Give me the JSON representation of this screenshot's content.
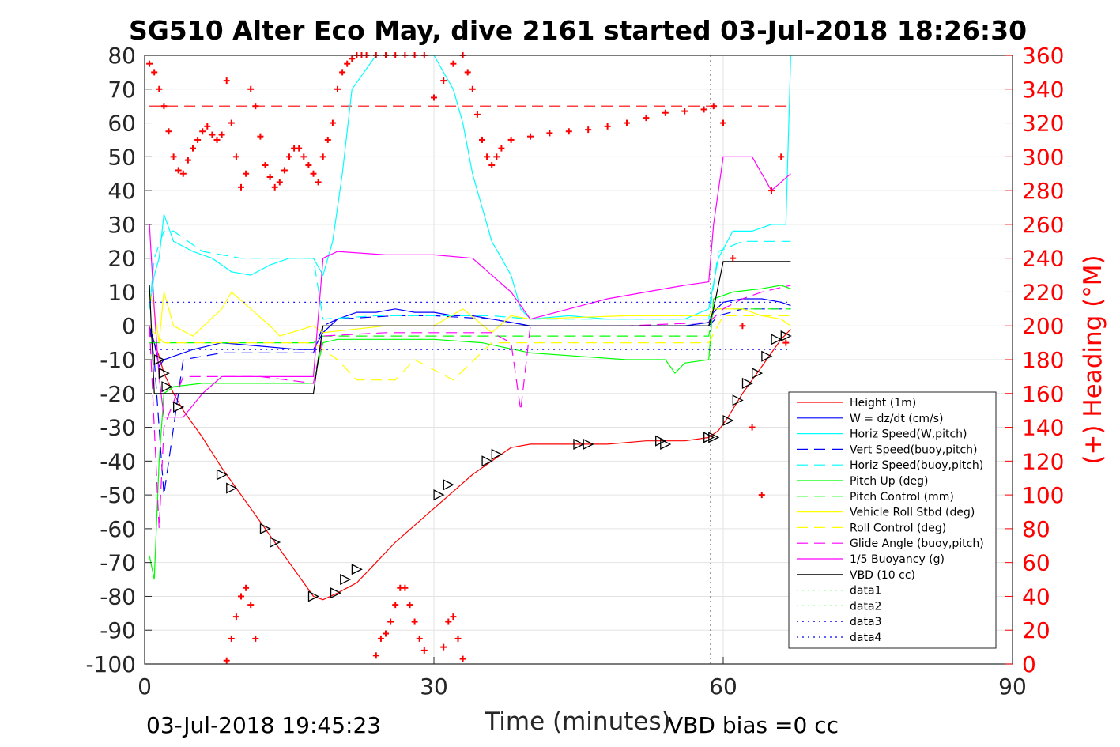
{
  "chart_data": {
    "type": "line",
    "title": "SG510 Alter Eco May, dive 2161 started 03-Jul-2018 18:26:30",
    "xlabel": "Time (minutes)",
    "ylabel_right": "(+) Heading (°M)",
    "xlim": [
      0,
      90
    ],
    "ylim": [
      -100,
      80
    ],
    "ylim_right": [
      0,
      360
    ],
    "x_ticks": [
      "0",
      "30",
      "60",
      "90"
    ],
    "y_ticks": [
      "-100",
      "-90",
      "-80",
      "-70",
      "-60",
      "-50",
      "-40",
      "-30",
      "-20",
      "-10",
      "0",
      "10",
      "20",
      "30",
      "40",
      "50",
      "60",
      "70",
      "80"
    ],
    "y_right_ticks": [
      "0",
      "20",
      "40",
      "60",
      "80",
      "100",
      "120",
      "140",
      "160",
      "180",
      "200",
      "220",
      "240",
      "260",
      "280",
      "300",
      "320",
      "340",
      "360"
    ],
    "grid": true,
    "legend_position": "lower-right",
    "footer_left": "03-Jul-2018 19:45:23",
    "footer_right": "VBD bias =0 cc",
    "colors": {
      "height": "#ff0000",
      "w": "#0000ff",
      "horiz_w": "#00ffff",
      "vert_buoy": "#0000ff",
      "horiz_buoy": "#00ffff",
      "pitch_up": "#00ff00",
      "pitch_control": "#00ff00",
      "roll": "#ffff00",
      "roll_control": "#ffff00",
      "glide_angle": "#ff00ff",
      "buoyancy": "#ff00ff",
      "vbd": "#000000",
      "heading": "#ff0000"
    },
    "vertical_markers_x": [
      58.7
    ],
    "heading_desired_deg": 330,
    "reference_lines_y": [
      7,
      -7
    ],
    "series": [
      {
        "name": "Height (1m)",
        "style": "solid",
        "color": "#ff0000",
        "x": [
          0.5,
          1,
          1.5,
          2,
          3,
          4,
          6,
          8,
          10,
          12,
          14,
          16,
          17.5,
          18.5,
          20,
          22,
          24,
          26,
          28,
          30,
          32,
          34,
          36,
          38,
          40,
          44,
          48,
          52,
          56,
          58.5,
          59.5,
          60.5,
          62,
          63,
          64,
          65,
          66,
          67
        ],
        "y": [
          -2,
          -5,
          -9,
          -14,
          -20,
          -25,
          -33,
          -42,
          -50,
          -58,
          -66,
          -74,
          -80,
          -81,
          -79,
          -76,
          -70,
          -64,
          -59,
          -54,
          -49,
          -44,
          -40,
          -36,
          -35,
          -35,
          -35,
          -34,
          -34,
          -33,
          -31,
          -27,
          -20,
          -16,
          -12,
          -8,
          -4,
          -1
        ]
      },
      {
        "name": "W = dz/dt (cm/s)",
        "style": "solid",
        "color": "#0000ff",
        "x": [
          0.5,
          1,
          1.5,
          2,
          3,
          5,
          8,
          12,
          16,
          17.5,
          18.5,
          20,
          22,
          24,
          26,
          28,
          30,
          32,
          34,
          36,
          38,
          40,
          44,
          48,
          52,
          56,
          58.5,
          59,
          60,
          62,
          64,
          66,
          67
        ],
        "y": [
          0,
          -5,
          -12,
          -10,
          -9,
          -7,
          -5,
          -6,
          -7,
          -7,
          -2,
          2,
          4,
          4,
          5,
          4,
          4,
          3,
          3,
          2,
          1,
          0,
          0,
          0,
          0,
          0,
          1,
          4,
          7,
          8,
          8,
          7,
          6
        ]
      },
      {
        "name": "Horiz Speed(W,pitch)",
        "style": "solid",
        "color": "#00ffff",
        "x": [
          0.5,
          1,
          1.5,
          2,
          3,
          5,
          7,
          9,
          11,
          13,
          15,
          17.5,
          18.5,
          19.5,
          20.5,
          21.5,
          24,
          27,
          30,
          32,
          33,
          34,
          35,
          36,
          37,
          38,
          39,
          40,
          44,
          48,
          52,
          56,
          58.5,
          59.5,
          61,
          63,
          65,
          66.5,
          67
        ],
        "y": [
          5,
          15,
          20,
          33,
          25,
          22,
          20,
          16,
          15,
          18,
          20,
          20,
          15,
          25,
          45,
          70,
          80,
          80,
          80,
          70,
          60,
          45,
          35,
          25,
          20,
          15,
          5,
          2,
          3,
          2,
          2,
          2,
          5,
          20,
          28,
          28,
          30,
          30,
          80
        ]
      },
      {
        "name": "Vert Speed(buoy,pitch)",
        "style": "dash",
        "color": "#0000ff",
        "x": [
          0.5,
          1,
          2,
          4,
          8,
          12,
          17.5,
          18.5,
          20,
          26,
          30,
          36,
          40,
          50,
          58.5,
          59.5,
          62,
          66,
          67
        ],
        "y": [
          0,
          -10,
          -50,
          -10,
          -8,
          -8,
          -8,
          0,
          2,
          3,
          3,
          2,
          0,
          0,
          0,
          3,
          5,
          5,
          5
        ]
      },
      {
        "name": "Horiz Speed(buoy,pitch)",
        "style": "dash",
        "color": "#00ffff",
        "x": [
          0.5,
          1,
          2,
          3,
          6,
          10,
          14,
          17.5,
          18.5,
          24,
          30,
          36,
          40,
          50,
          58.5,
          59.5,
          62,
          66,
          67
        ],
        "y": [
          5,
          20,
          28,
          28,
          22,
          20,
          20,
          20,
          2,
          3,
          3,
          3,
          2,
          2,
          2,
          22,
          25,
          25,
          25
        ]
      },
      {
        "name": "Pitch Up (deg)",
        "style": "solid",
        "color": "#00ff00",
        "x": [
          0.5,
          1,
          1.5,
          2,
          3,
          6,
          10,
          14,
          17.5,
          18.5,
          20,
          25,
          30,
          35,
          40,
          45,
          50,
          54,
          55,
          56,
          58.5,
          59,
          61,
          64,
          66,
          67
        ],
        "y": [
          -68,
          -75,
          -40,
          -20,
          -18,
          -17,
          -17,
          -17,
          -17,
          -5,
          -4,
          -4,
          -4,
          -5,
          -8,
          -9,
          -10,
          -10,
          -14,
          -11,
          -10,
          8,
          10,
          11,
          12,
          11
        ]
      },
      {
        "name": "Pitch Control (mm)",
        "style": "dash",
        "color": "#00ff00",
        "x": [
          0.5,
          1,
          2,
          4,
          8,
          12,
          17.5,
          18.5,
          25,
          30,
          40,
          50,
          58.5,
          59,
          62,
          67
        ],
        "y": [
          -5,
          -5,
          -5,
          -5,
          -5,
          -5,
          -5,
          -3,
          -3,
          -3,
          -3,
          -3,
          -3,
          5,
          5,
          5
        ]
      },
      {
        "name": "Vehicle Roll Stbd (deg)",
        "style": "solid",
        "color": "#ffff00",
        "x": [
          0.5,
          1,
          1.5,
          2,
          3,
          5,
          8,
          9,
          11,
          13,
          14,
          17.5,
          18.5,
          25,
          30,
          33,
          36,
          38,
          40,
          50,
          58.5,
          59,
          62,
          64,
          66,
          67
        ],
        "y": [
          10,
          5,
          -5,
          10,
          0,
          -3,
          5,
          10,
          5,
          0,
          -3,
          0,
          -2,
          0,
          0,
          5,
          -2,
          3,
          2,
          3,
          3,
          5,
          5,
          3,
          2,
          0
        ]
      },
      {
        "name": "Roll Control (deg)",
        "style": "dash",
        "color": "#ffff00",
        "x": [
          0.5,
          1,
          2,
          4,
          8,
          12,
          17.5,
          20,
          22,
          26,
          28,
          32,
          36,
          40,
          50,
          58.5,
          60,
          62,
          64,
          67
        ],
        "y": [
          0,
          -2,
          -5,
          -5,
          -5,
          -5,
          -5,
          -10,
          -16,
          -16,
          -10,
          -16,
          -5,
          -5,
          -5,
          -5,
          3,
          3,
          3,
          3
        ]
      },
      {
        "name": "Glide Angle (buoy,pitch)",
        "style": "dash",
        "color": "#ff00ff",
        "x": [
          0.5,
          1,
          1.5,
          2,
          4,
          8,
          12,
          17.5,
          18.5,
          25,
          30,
          36,
          38,
          39,
          40,
          45,
          50,
          58.5,
          60,
          62,
          64,
          67
        ],
        "y": [
          0,
          -30,
          -60,
          -30,
          -15,
          -15,
          -15,
          -17,
          -3,
          -2,
          -2,
          -2,
          -5,
          -25,
          0,
          0,
          0,
          1,
          5,
          8,
          10,
          12
        ]
      },
      {
        "name": "1/5 Buoyancy (g)",
        "style": "solid",
        "color": "#ff00ff",
        "x": [
          0.5,
          1,
          1.5,
          2,
          3,
          4,
          6,
          8,
          12,
          16,
          17.5,
          18.5,
          20,
          25,
          30,
          34,
          36,
          38,
          40,
          44,
          48,
          52,
          56,
          58.5,
          59,
          60,
          63,
          64,
          65,
          67
        ],
        "y": [
          30,
          5,
          -15,
          -27,
          -27,
          -27,
          -20,
          -15,
          -15,
          -15,
          -15,
          20,
          22,
          21,
          21,
          20,
          15,
          10,
          2,
          5,
          8,
          10,
          12,
          13,
          30,
          50,
          50,
          45,
          40,
          45
        ]
      },
      {
        "name": "VBD (10 cc)",
        "style": "solid",
        "color": "#000000",
        "x": [
          0.5,
          1,
          2,
          17.5,
          18.5,
          58.5,
          59,
          60,
          61,
          67
        ],
        "y": [
          12,
          -20,
          -20,
          -20,
          0,
          0,
          5,
          19,
          19,
          19
        ]
      },
      {
        "name": "data1",
        "style": "dot",
        "color": "#00ff00",
        "x": [],
        "y": []
      },
      {
        "name": "data2",
        "style": "dot",
        "color": "#00ff00",
        "x": [],
        "y": []
      },
      {
        "name": "data3",
        "style": "dot",
        "color": "#0000ff",
        "x": [
          0.5,
          67
        ],
        "y": [
          7,
          7
        ]
      },
      {
        "name": "data4",
        "style": "dot",
        "color": "#0000ff",
        "x": [
          0.5,
          67
        ],
        "y": [
          -7,
          -7
        ]
      }
    ],
    "heading_points": {
      "x": [
        0.5,
        1,
        1.5,
        2,
        2.5,
        3,
        3.5,
        4,
        4.5,
        5,
        5.5,
        6,
        6.5,
        7,
        7.5,
        8,
        8.5,
        9,
        9.5,
        10,
        10.5,
        11,
        11.5,
        12,
        12.5,
        13,
        13.5,
        14,
        14.5,
        15,
        15.5,
        16,
        16.5,
        17,
        17.5,
        18,
        18.5,
        19,
        19.5,
        20,
        20.5,
        21,
        21.5,
        22,
        22.5,
        23,
        24,
        25,
        26,
        27,
        28,
        29,
        30,
        31,
        32,
        33,
        33.5,
        34,
        34.5,
        35,
        35.5,
        36,
        36.5,
        37,
        38,
        40,
        42,
        44,
        46,
        48,
        50,
        52,
        54,
        56,
        58,
        59,
        60,
        61,
        62,
        63,
        64,
        65,
        66,
        66.5
      ],
      "y": [
        355,
        350,
        340,
        330,
        315,
        300,
        292,
        290,
        298,
        305,
        310,
        315,
        318,
        313,
        310,
        313,
        345,
        320,
        300,
        282,
        290,
        340,
        330,
        312,
        295,
        288,
        282,
        285,
        292,
        300,
        305,
        305,
        300,
        295,
        290,
        285,
        300,
        310,
        320,
        340,
        350,
        355,
        358,
        360,
        360,
        360,
        360,
        360,
        360,
        360,
        360,
        360,
        335,
        345,
        355,
        360,
        350,
        340,
        325,
        310,
        300,
        295,
        300,
        305,
        310,
        312,
        314,
        315,
        316,
        318,
        320,
        323,
        326,
        327,
        328,
        330,
        320,
        240,
        200,
        140,
        100,
        280,
        300,
        190
      ]
    },
    "heading_low_points": {
      "x": [
        8.5,
        9,
        9.5,
        10,
        10.5,
        11,
        11.5,
        24,
        24.5,
        25,
        25.5,
        26,
        26.5,
        27,
        27.5,
        28,
        28.5,
        29,
        31,
        31.5,
        32,
        32.5,
        33
      ],
      "y": [
        2,
        15,
        28,
        40,
        45,
        35,
        15,
        5,
        15,
        18,
        25,
        35,
        45,
        45,
        35,
        25,
        15,
        8,
        10,
        25,
        28,
        15,
        3
      ]
    },
    "marker_points": {
      "x": [
        1.5,
        2,
        2.3,
        3.5,
        8,
        9,
        12.5,
        13.5,
        17.5,
        19.8,
        20.8,
        22,
        30.5,
        31.5,
        35.5,
        36.5,
        45,
        46,
        53.5,
        54,
        58.5,
        59,
        60.5,
        61.5,
        62.5,
        63.5,
        64.5,
        65.5,
        66.5
      ],
      "y": [
        -10,
        -14,
        -18,
        -24,
        -44,
        -48,
        -60,
        -64,
        -80,
        -79,
        -75,
        -72,
        -50,
        -47,
        -40,
        -38,
        -35,
        -35,
        -34,
        -35,
        -33,
        -33,
        -28,
        -22,
        -17,
        -14,
        -9,
        -4,
        -3
      ]
    }
  }
}
